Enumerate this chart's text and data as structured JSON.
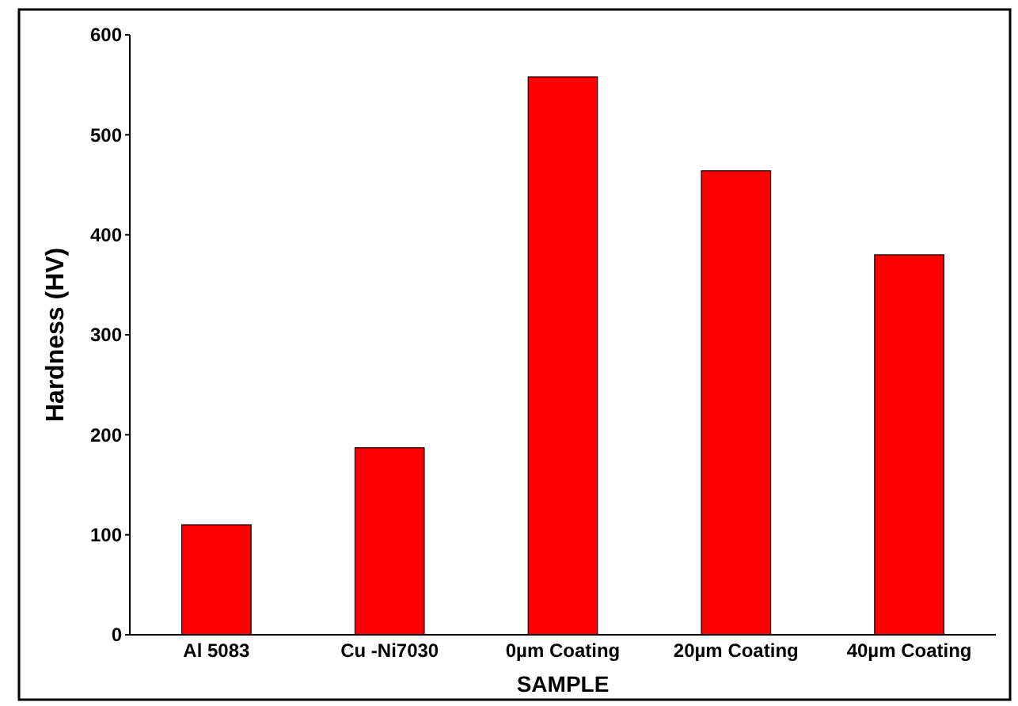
{
  "chart_data": {
    "type": "bar",
    "xlabel": "SAMPLE",
    "ylabel": "Hardness (HV)",
    "categories": [
      "Al 5083",
      "Cu -Ni7030",
      "0µm Coating",
      "20µm Coating",
      "40µm Coating"
    ],
    "values": [
      110,
      187,
      558,
      464,
      380
    ],
    "color": "#ff0000",
    "ylim": [
      0,
      600
    ],
    "yticks": [
      0,
      100,
      200,
      300,
      400,
      500,
      600
    ],
    "grid": false
  }
}
